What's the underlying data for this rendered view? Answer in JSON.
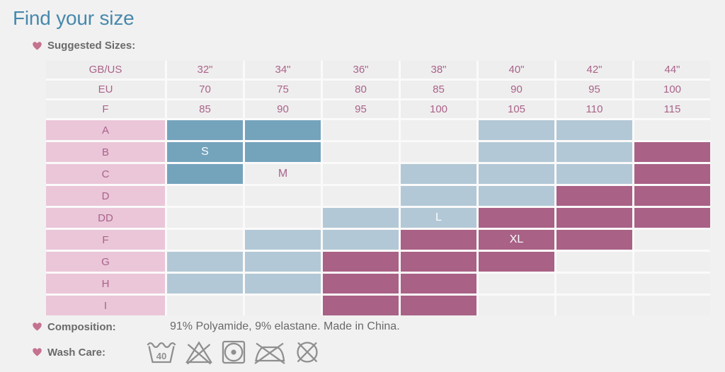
{
  "page": {
    "title": "Find your size"
  },
  "colors": {
    "page_bg": "#f2f1f1",
    "gap_white": "#fbfafa",
    "title_blue": "#4689ac",
    "header_cell": "#efeeee",
    "empty_cell": "#f0efef",
    "teal": "#74a3bc",
    "light_blue": "#b2c8d6",
    "mauve": "#a96186",
    "pink": "#eac6d8",
    "text_mauve": "#a8638a",
    "label_text": "#6a6a6a",
    "heart": "#c57291",
    "icon_gray": "#8f8f8f"
  },
  "suggested": {
    "label": "Suggested Sizes:"
  },
  "size_table": {
    "header_rows": [
      {
        "label": "GB/US",
        "values": [
          "32\"",
          "34\"",
          "36\"",
          "38\"",
          "40\"",
          "42\"",
          "44\""
        ]
      },
      {
        "label": "EU",
        "values": [
          "70",
          "75",
          "80",
          "85",
          "90",
          "95",
          "100"
        ]
      },
      {
        "label": "F",
        "values": [
          "85",
          "90",
          "95",
          "100",
          "105",
          "110",
          "115"
        ]
      }
    ],
    "body_rows": [
      {
        "label": "A",
        "cells": [
          {
            "c": "teal"
          },
          {
            "c": "teal"
          },
          {
            "c": "empty"
          },
          {
            "c": "empty"
          },
          {
            "c": "blue"
          },
          {
            "c": "blue"
          },
          {
            "c": "empty"
          }
        ]
      },
      {
        "label": "B",
        "cells": [
          {
            "c": "teal",
            "t": "S",
            "tt": "white"
          },
          {
            "c": "teal"
          },
          {
            "c": "empty"
          },
          {
            "c": "empty"
          },
          {
            "c": "blue"
          },
          {
            "c": "blue"
          },
          {
            "c": "mauve"
          }
        ]
      },
      {
        "label": "C",
        "cells": [
          {
            "c": "teal"
          },
          {
            "c": "empty",
            "t": "M",
            "tt": "mauve"
          },
          {
            "c": "empty"
          },
          {
            "c": "blue"
          },
          {
            "c": "blue"
          },
          {
            "c": "blue"
          },
          {
            "c": "mauve"
          }
        ]
      },
      {
        "label": "D",
        "cells": [
          {
            "c": "empty"
          },
          {
            "c": "empty"
          },
          {
            "c": "empty"
          },
          {
            "c": "blue"
          },
          {
            "c": "blue"
          },
          {
            "c": "mauve"
          },
          {
            "c": "mauve"
          }
        ]
      },
      {
        "label": "DD",
        "cells": [
          {
            "c": "empty"
          },
          {
            "c": "empty"
          },
          {
            "c": "blue"
          },
          {
            "c": "blue",
            "t": "L",
            "tt": "white"
          },
          {
            "c": "mauve"
          },
          {
            "c": "mauve"
          },
          {
            "c": "mauve"
          }
        ]
      },
      {
        "label": "F",
        "cells": [
          {
            "c": "empty"
          },
          {
            "c": "blue"
          },
          {
            "c": "blue"
          },
          {
            "c": "mauve"
          },
          {
            "c": "mauve",
            "t": "XL",
            "tt": "white"
          },
          {
            "c": "mauve"
          },
          {
            "c": "empty"
          }
        ]
      },
      {
        "label": "G",
        "cells": [
          {
            "c": "blue"
          },
          {
            "c": "blue"
          },
          {
            "c": "mauve"
          },
          {
            "c": "mauve"
          },
          {
            "c": "mauve"
          },
          {
            "c": "empty"
          },
          {
            "c": "empty"
          }
        ]
      },
      {
        "label": "H",
        "cells": [
          {
            "c": "blue"
          },
          {
            "c": "blue"
          },
          {
            "c": "mauve"
          },
          {
            "c": "mauve"
          },
          {
            "c": "empty"
          },
          {
            "c": "empty"
          },
          {
            "c": "empty"
          }
        ]
      },
      {
        "label": "I",
        "cells": [
          {
            "c": "empty"
          },
          {
            "c": "empty"
          },
          {
            "c": "mauve"
          },
          {
            "c": "mauve"
          },
          {
            "c": "empty"
          },
          {
            "c": "empty"
          },
          {
            "c": "empty"
          }
        ]
      }
    ]
  },
  "composition": {
    "label": "Composition:",
    "value": "91% Polyamide, 9% elastane. Made in China."
  },
  "wash_care": {
    "label": "Wash Care:",
    "icons": [
      "machine-wash-40",
      "do-not-bleach",
      "tumble-dry-low-heat",
      "do-not-iron",
      "do-not-dry-clean"
    ],
    "wash_temp": "40"
  }
}
